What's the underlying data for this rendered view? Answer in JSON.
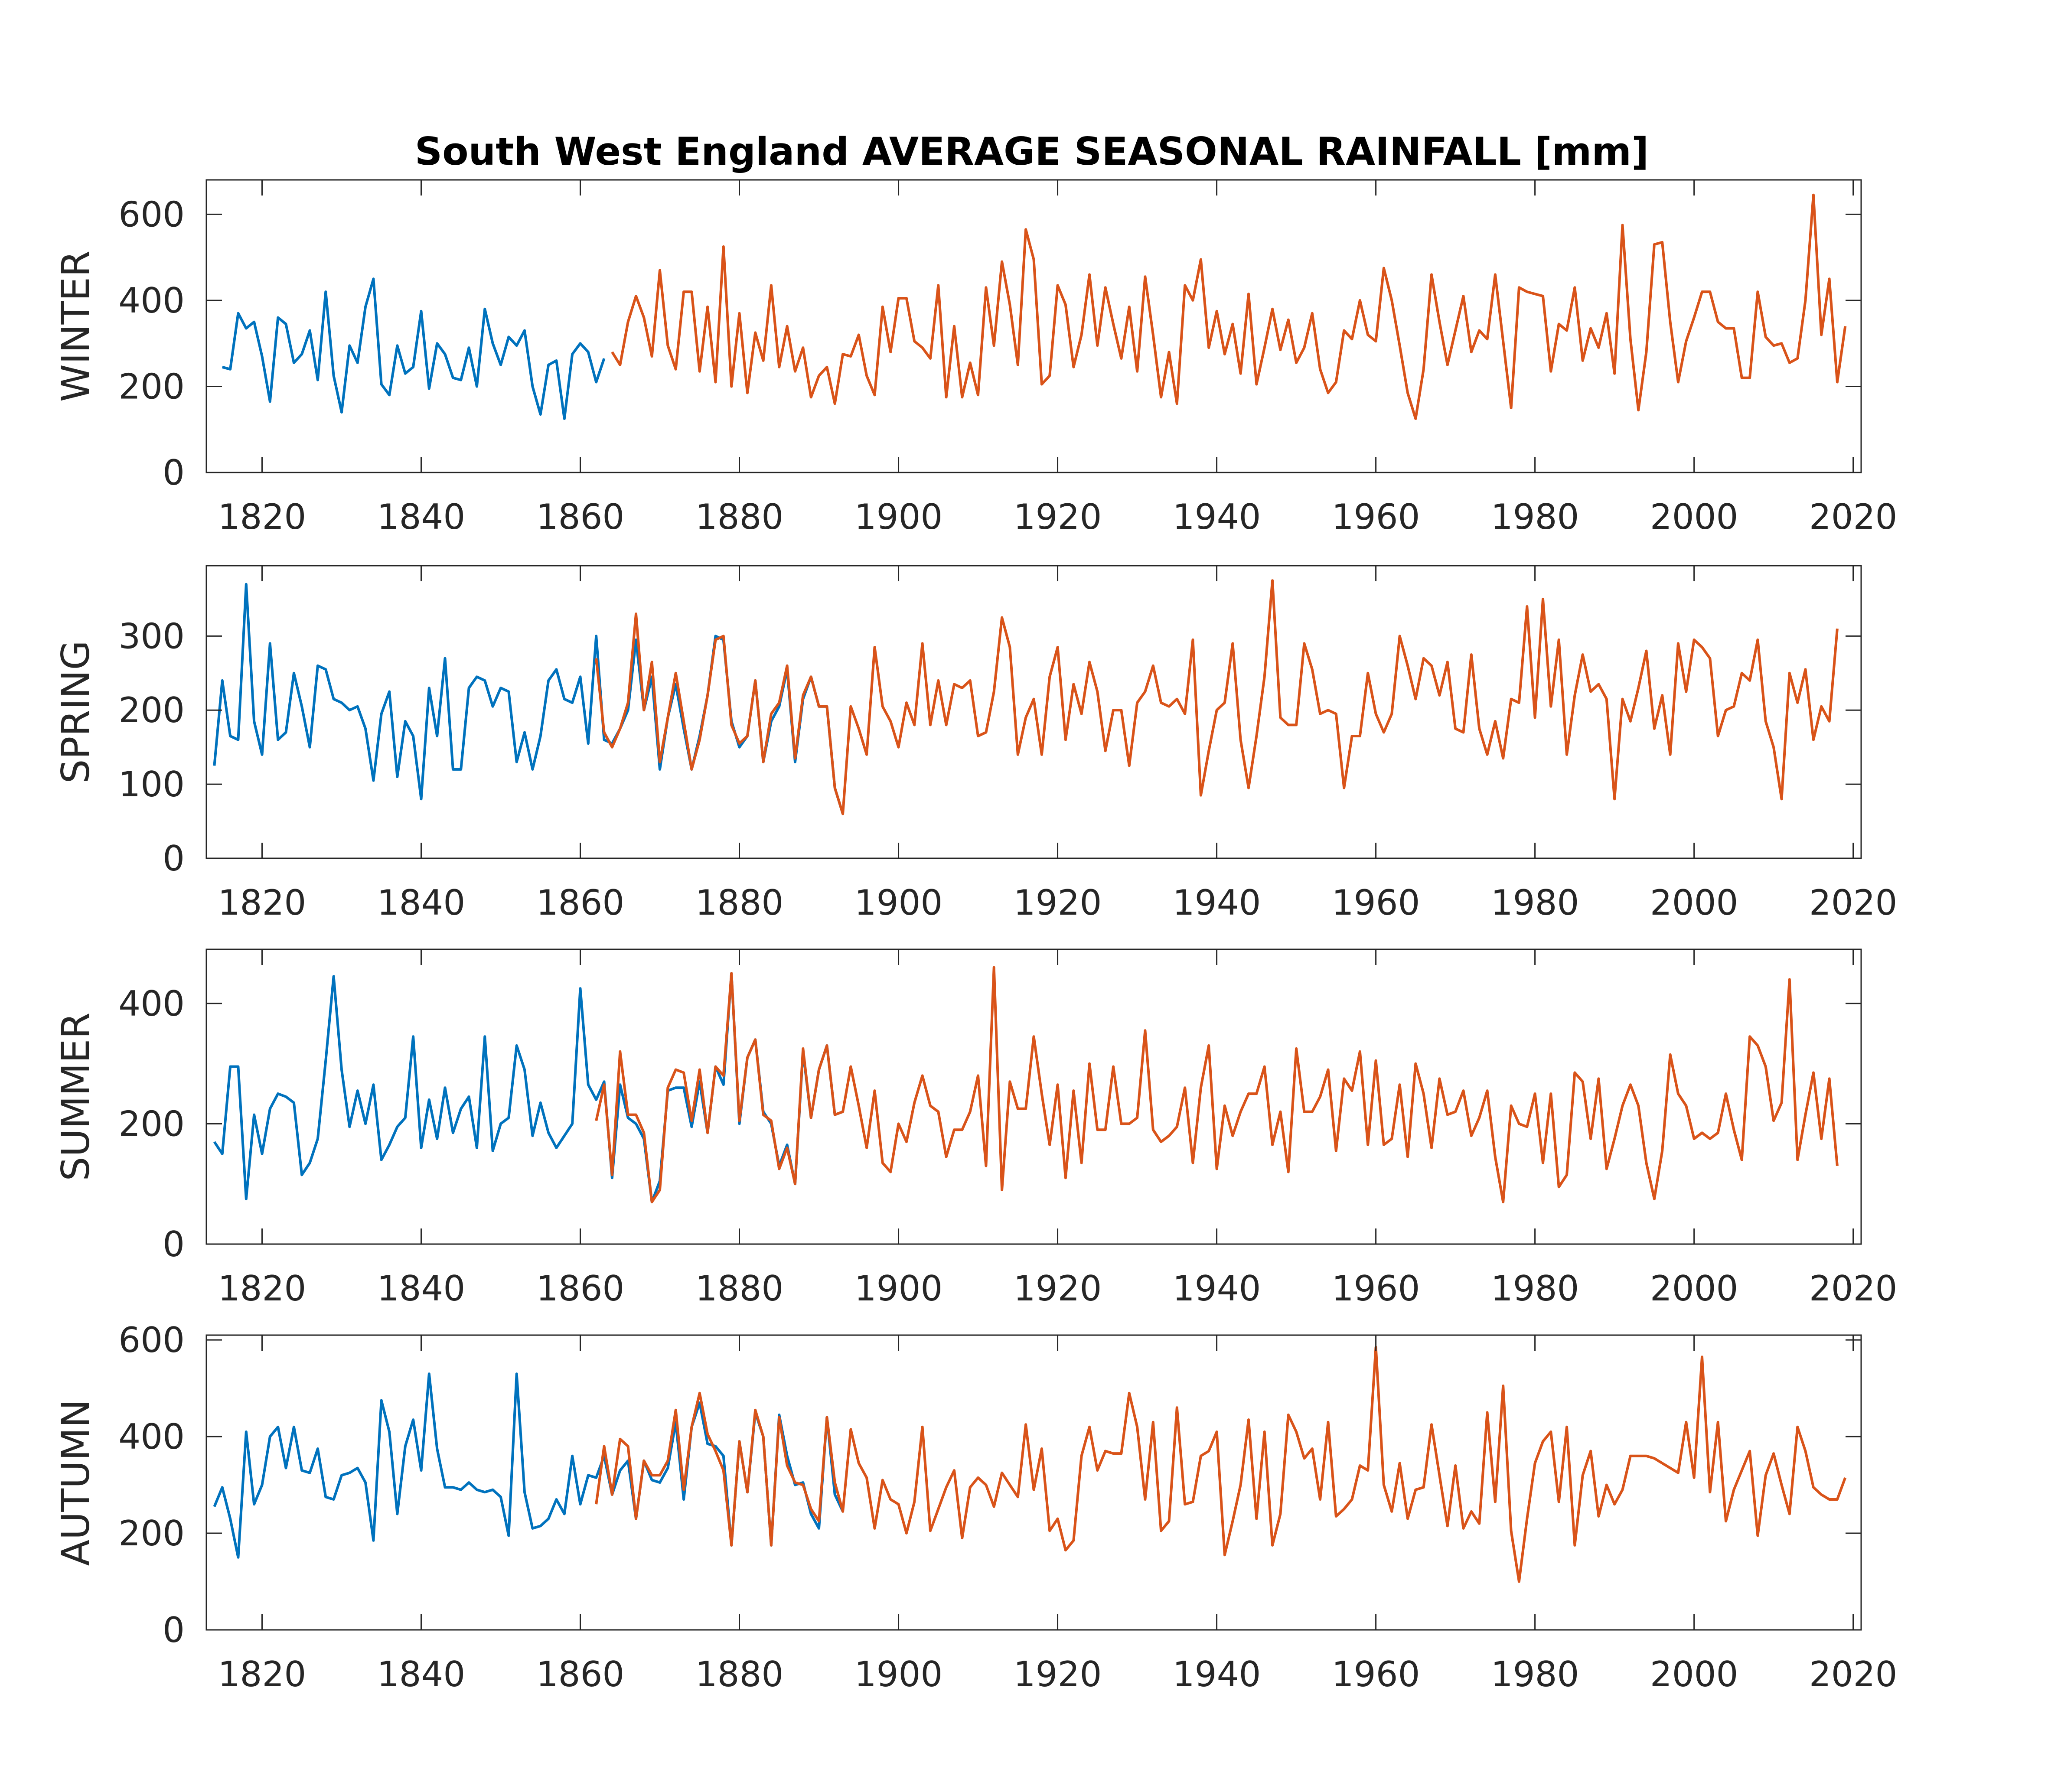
{
  "title": "South West England AVERAGE SEASONAL RAINFALL [mm]",
  "colors": {
    "series_a": "#0072BD",
    "series_b": "#D95319",
    "axis": "#262626",
    "background": "#FFFFFF"
  },
  "chart_data": [
    {
      "type": "line",
      "ylabel": "WINTER",
      "xlim": [
        1813,
        2021
      ],
      "ylim": [
        0,
        680
      ],
      "xticks": [
        "1820",
        "1840",
        "1860",
        "1880",
        "1900",
        "1920",
        "1940",
        "1960",
        "1980",
        "2000",
        "2020"
      ],
      "yticks": [
        "0",
        "200",
        "400",
        "600"
      ],
      "series": [
        {
          "x_start": 1815,
          "values": [
            245,
            240,
            370,
            335,
            350,
            270,
            165,
            360,
            345,
            255,
            275,
            330,
            215,
            420,
            225,
            140,
            295,
            255,
            385,
            450,
            205,
            180,
            295,
            230,
            245,
            375,
            195,
            300,
            275,
            220,
            215,
            290,
            200,
            380,
            300,
            250,
            315,
            295,
            330,
            200,
            135,
            250,
            260,
            125,
            275,
            300,
            280,
            210,
            265
          ]
        },
        {
          "x_start": 1864,
          "values": [
            280,
            250,
            350,
            410,
            360,
            270,
            470,
            295,
            240,
            420,
            420,
            235,
            385,
            210,
            525,
            200,
            370,
            185,
            325,
            260,
            435,
            245,
            340,
            235,
            290,
            175,
            225,
            245,
            160,
            275,
            270,
            320,
            225,
            180,
            385,
            280,
            405,
            405,
            305,
            290,
            265,
            435,
            175,
            340,
            175,
            255,
            180,
            430,
            295,
            490,
            390,
            250,
            565,
            495,
            205,
            225,
            435,
            390,
            245,
            320,
            460,
            295,
            430,
            345,
            265,
            385,
            235,
            455,
            320,
            175,
            280,
            160,
            435,
            400,
            495,
            290,
            375,
            275,
            345,
            230,
            415,
            205,
            290,
            380,
            285,
            355,
            255,
            290,
            370,
            240,
            185,
            210,
            330,
            310,
            400,
            320,
            305,
            475,
            400,
            295,
            185,
            125,
            240,
            460,
            350,
            250,
            330,
            410,
            280,
            330,
            310,
            460,
            305,
            150,
            430,
            420,
            415,
            410,
            235,
            345,
            330,
            430,
            260,
            335,
            290,
            370,
            230,
            575,
            310,
            145,
            280,
            530,
            535,
            350,
            210,
            305,
            360,
            420,
            420,
            350,
            335,
            335,
            220,
            220,
            420,
            315,
            295,
            300,
            255,
            265,
            400,
            645,
            320,
            450,
            210,
            340
          ]
        }
      ]
    },
    {
      "type": "line",
      "ylabel": "SPRING",
      "xlim": [
        1813,
        2021
      ],
      "ylim": [
        0,
        395
      ],
      "xticks": [
        "1820",
        "1840",
        "1860",
        "1880",
        "1900",
        "1920",
        "1940",
        "1960",
        "1980",
        "2000",
        "2020"
      ],
      "yticks": [
        "0",
        "100",
        "200",
        "300"
      ],
      "series": [
        {
          "x_start": 1814,
          "values": [
            125,
            240,
            165,
            160,
            370,
            185,
            140,
            290,
            160,
            170,
            250,
            205,
            150,
            260,
            255,
            215,
            210,
            200,
            205,
            175,
            105,
            195,
            225,
            110,
            185,
            165,
            80,
            230,
            165,
            270,
            120,
            120,
            230,
            245,
            240,
            205,
            230,
            225,
            130,
            170,
            120,
            165,
            240,
            255,
            215,
            210,
            245,
            155,
            300,
            160,
            155,
            175,
            200,
            295,
            200,
            245,
            120,
            190,
            235,
            175,
            120,
            165,
            220,
            300,
            295,
            185,
            150,
            165,
            240,
            130,
            185,
            205,
            255,
            130,
            215,
            245,
            205,
            205,
            95,
            60
          ]
        },
        {
          "x_start": 1862,
          "values": [
            270,
            170,
            150,
            175,
            210,
            330,
            200,
            265,
            130,
            190,
            250,
            185,
            120,
            160,
            220,
            295,
            300,
            180,
            155,
            165,
            240,
            130,
            195,
            210,
            260,
            135,
            220,
            245,
            205,
            205,
            95,
            60,
            205,
            175,
            140,
            285,
            205,
            185,
            150,
            210,
            180,
            290,
            180,
            240,
            180,
            235,
            230,
            240,
            165,
            170,
            225,
            325,
            285,
            140,
            190,
            215,
            140,
            245,
            285,
            160,
            235,
            195,
            265,
            225,
            145,
            200,
            200,
            125,
            210,
            225,
            260,
            210,
            205,
            215,
            195,
            295,
            85,
            145,
            200,
            210,
            290,
            160,
            95,
            165,
            245,
            375,
            190,
            180,
            180,
            290,
            255,
            195,
            200,
            195,
            95,
            165,
            165,
            250,
            195,
            170,
            195,
            300,
            260,
            215,
            270,
            260,
            220,
            265,
            175,
            170,
            275,
            175,
            140,
            185,
            135,
            215,
            210,
            340,
            190,
            350,
            205,
            295,
            140,
            220,
            275,
            225,
            235,
            215,
            80,
            215,
            185,
            230,
            280,
            175,
            220,
            140,
            290,
            225,
            295,
            285,
            270,
            165,
            200,
            205,
            250,
            240,
            295,
            185,
            150,
            80,
            250,
            210,
            255,
            160,
            205,
            185,
            310
          ]
        }
      ]
    },
    {
      "type": "line",
      "ylabel": "SUMMER",
      "xlim": [
        1813,
        2021
      ],
      "ylim": [
        0,
        490
      ],
      "xticks": [
        "1820",
        "1840",
        "1860",
        "1880",
        "1900",
        "1920",
        "1940",
        "1960",
        "1980",
        "2000",
        "2020"
      ],
      "yticks": [
        "0",
        "200",
        "400"
      ],
      "series": [
        {
          "x_start": 1814,
          "values": [
            170,
            150,
            295,
            295,
            75,
            215,
            150,
            225,
            250,
            245,
            235,
            115,
            135,
            175,
            305,
            445,
            290,
            195,
            255,
            200,
            265,
            140,
            165,
            195,
            210,
            345,
            160,
            240,
            175,
            260,
            185,
            225,
            245,
            160,
            345,
            155,
            200,
            210,
            330,
            290,
            180,
            235,
            185,
            160,
            180,
            200,
            425,
            265,
            240,
            270,
            110,
            265,
            210,
            200,
            175,
            70,
            105,
            255,
            260,
            260,
            195,
            270,
            185,
            295,
            265,
            450,
            200,
            310,
            340,
            220,
            200,
            130,
            165,
            100,
            320,
            210,
            290,
            330,
            215,
            220
          ]
        },
        {
          "x_start": 1862,
          "values": [
            205,
            265,
            115,
            320,
            215,
            215,
            185,
            70,
            90,
            260,
            290,
            285,
            205,
            290,
            185,
            295,
            280,
            450,
            205,
            310,
            340,
            215,
            205,
            125,
            160,
            100,
            325,
            210,
            290,
            330,
            215,
            220,
            295,
            230,
            160,
            255,
            135,
            120,
            200,
            170,
            235,
            280,
            230,
            220,
            145,
            190,
            190,
            220,
            280,
            130,
            460,
            90,
            270,
            225,
            225,
            345,
            250,
            165,
            265,
            110,
            255,
            135,
            300,
            190,
            190,
            295,
            200,
            200,
            210,
            355,
            190,
            170,
            180,
            195,
            260,
            135,
            260,
            330,
            125,
            230,
            180,
            220,
            250,
            250,
            295,
            165,
            220,
            120,
            325,
            220,
            220,
            245,
            290,
            155,
            275,
            255,
            320,
            165,
            305,
            165,
            175,
            265,
            145,
            300,
            250,
            160,
            275,
            215,
            220,
            255,
            180,
            210,
            255,
            145,
            70,
            230,
            200,
            195,
            250,
            135,
            250,
            95,
            115,
            285,
            270,
            175,
            275,
            125,
            175,
            230,
            265,
            230,
            135,
            75,
            155,
            315,
            250,
            230,
            175,
            185,
            175,
            185,
            250,
            190,
            140,
            345,
            330,
            295,
            205,
            235,
            440,
            140,
            215,
            285,
            175,
            275,
            130
          ]
        }
      ]
    },
    {
      "type": "line",
      "ylabel": "AUTUMN",
      "xlim": [
        1813,
        2021
      ],
      "ylim": [
        0,
        610
      ],
      "xticks": [
        "1820",
        "1840",
        "1860",
        "1880",
        "1900",
        "1920",
        "1940",
        "1960",
        "1980",
        "2000",
        "2020"
      ],
      "yticks": [
        "0",
        "200",
        "400",
        "600"
      ],
      "series": [
        {
          "x_start": 1814,
          "values": [
            255,
            295,
            230,
            150,
            410,
            260,
            300,
            400,
            420,
            335,
            420,
            330,
            325,
            375,
            275,
            270,
            320,
            325,
            335,
            305,
            185,
            475,
            410,
            240,
            380,
            435,
            330,
            530,
            375,
            295,
            295,
            290,
            305,
            290,
            285,
            290,
            275,
            195,
            530,
            285,
            210,
            215,
            230,
            270,
            240,
            360,
            260,
            320,
            315,
            360,
            280,
            330,
            350,
            230,
            350,
            310,
            305,
            335,
            430,
            270,
            420,
            470,
            385,
            380,
            360,
            175,
            390,
            285,
            450,
            400,
            175,
            445,
            360,
            300,
            305,
            240,
            210,
            440,
            280,
            245
          ]
        },
        {
          "x_start": 1862,
          "values": [
            260,
            380,
            280,
            395,
            380,
            230,
            350,
            320,
            320,
            350,
            455,
            290,
            420,
            490,
            405,
            370,
            330,
            175,
            390,
            285,
            455,
            400,
            175,
            440,
            340,
            305,
            300,
            250,
            225,
            440,
            305,
            245,
            415,
            345,
            315,
            210,
            310,
            270,
            260,
            200,
            265,
            420,
            205,
            250,
            295,
            330,
            190,
            295,
            315,
            300,
            255,
            325,
            300,
            275,
            425,
            290,
            375,
            205,
            230,
            165,
            185,
            360,
            420,
            330,
            370,
            365,
            365,
            490,
            420,
            270,
            430,
            205,
            225,
            460,
            260,
            265,
            360,
            370,
            410,
            155,
            225,
            300,
            435,
            230,
            410,
            175,
            240,
            445,
            410,
            355,
            375,
            270,
            430,
            235,
            250,
            270,
            340,
            330,
            585,
            300,
            245,
            345,
            230,
            290,
            295,
            425,
            320,
            215,
            340,
            210,
            245,
            220,
            450,
            265,
            505,
            205,
            100,
            230,
            345,
            390,
            410,
            265,
            420,
            175,
            320,
            370,
            235,
            300,
            260,
            290,
            360,
            360,
            360,
            355,
            345,
            335,
            325,
            430,
            315,
            565,
            285,
            430,
            225,
            290,
            330,
            370,
            195,
            320,
            365,
            300,
            240,
            420,
            370,
            295,
            280,
            270,
            270,
            315
          ]
        }
      ]
    }
  ]
}
